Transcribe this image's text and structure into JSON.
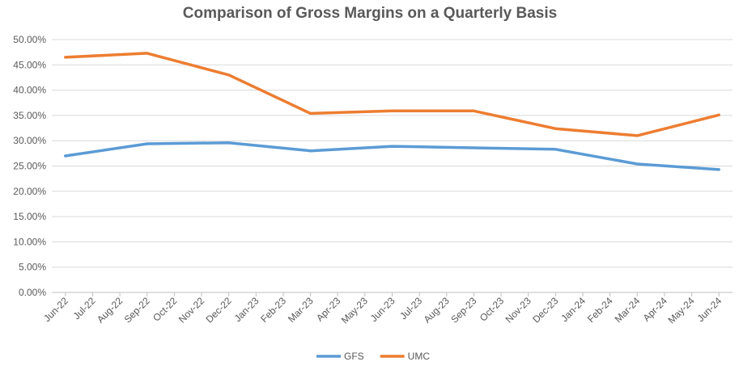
{
  "chart_data": {
    "type": "line",
    "title": "Comparison of Gross Margins on a Quarterly Basis",
    "xlabel": "",
    "ylabel": "",
    "ylim": [
      0,
      50
    ],
    "y_ticks": [
      "0.00%",
      "5.00%",
      "10.00%",
      "15.00%",
      "20.00%",
      "25.00%",
      "30.00%",
      "35.00%",
      "40.00%",
      "45.00%",
      "50.00%"
    ],
    "x_ticks": [
      "Jun-22",
      "Jul-22",
      "Aug-22",
      "Sep-22",
      "Oct-22",
      "Nov-22",
      "Dec-22",
      "Jan-23",
      "Feb-23",
      "Mar-23",
      "Apr-23",
      "May-23",
      "Jun-23",
      "Jul-23",
      "Aug-23",
      "Sep-23",
      "Oct-23",
      "Nov-23",
      "Dec-23",
      "Jan-24",
      "Feb-24",
      "Mar-24",
      "Apr-24",
      "May-24",
      "Jun-24"
    ],
    "categories": [
      "Jun-22",
      "Sep-22",
      "Dec-22",
      "Mar-23",
      "Jun-23",
      "Sep-23",
      "Dec-23",
      "Mar-24",
      "Jun-24"
    ],
    "series": [
      {
        "name": "GFS",
        "color": "#5B9BD5",
        "values": [
          27.0,
          29.4,
          29.6,
          28.0,
          28.9,
          28.6,
          28.3,
          25.4,
          24.3
        ]
      },
      {
        "name": "UMC",
        "color": "#ED7D31",
        "values": [
          46.5,
          47.3,
          43.0,
          35.4,
          35.9,
          35.9,
          32.4,
          31.0,
          35.1
        ]
      }
    ],
    "grid": true,
    "legend": "bottom"
  }
}
